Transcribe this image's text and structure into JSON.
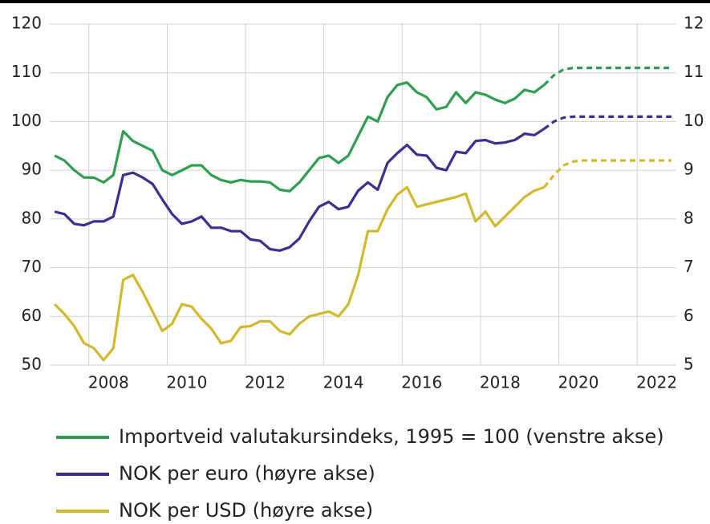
{
  "chart_data": {
    "type": "line",
    "x": [
      2007.125,
      2007.375,
      2007.625,
      2007.875,
      2008.125,
      2008.375,
      2008.625,
      2008.875,
      2009.125,
      2009.375,
      2009.625,
      2009.875,
      2010.125,
      2010.375,
      2010.625,
      2010.875,
      2011.125,
      2011.375,
      2011.625,
      2011.875,
      2012.125,
      2012.375,
      2012.625,
      2012.875,
      2013.125,
      2013.375,
      2013.625,
      2013.875,
      2014.125,
      2014.375,
      2014.625,
      2014.875,
      2015.125,
      2015.375,
      2015.625,
      2015.875,
      2016.125,
      2016.375,
      2016.625,
      2016.875,
      2017.125,
      2017.375,
      2017.625,
      2017.875,
      2018.125,
      2018.375,
      2018.625,
      2018.875,
      2019.125,
      2019.375,
      2019.625,
      2019.875,
      2020.125,
      2020.375,
      2020.625,
      2020.875,
      2021.125,
      2021.375,
      2021.625,
      2021.875,
      2022.125,
      2022.375,
      2022.625,
      2022.875
    ],
    "dashed_from": 2019.625,
    "series": [
      {
        "name": "Importveid valutakursindeks, 1995 = 100 (venstre akse)",
        "color": "#2e9e4f",
        "axis": "y",
        "values": [
          93,
          92,
          90,
          88.5,
          88.5,
          87.5,
          89,
          98,
          96,
          95,
          94,
          90,
          89,
          90,
          91,
          91,
          89,
          88,
          87.5,
          88,
          87.7,
          87.7,
          87.5,
          86,
          85.7,
          87.5,
          90,
          92.5,
          93,
          91.5,
          93,
          97,
          101,
          100,
          105,
          107.5,
          108,
          106,
          105,
          102.5,
          103,
          106,
          103.8,
          106,
          105.5,
          104.5,
          103.8,
          104.7,
          106.5,
          106,
          107.5,
          109.5,
          110.7,
          111,
          111,
          111,
          111,
          111,
          111,
          111,
          111,
          111,
          111,
          111
        ]
      },
      {
        "name": "NOK per euro (høyre akse)",
        "color": "#3f2e8f",
        "axis": "y2",
        "values": [
          8.15,
          8.1,
          7.9,
          7.87,
          7.95,
          7.95,
          8.05,
          8.9,
          8.95,
          8.85,
          8.72,
          8.4,
          8.1,
          7.9,
          7.95,
          8.05,
          7.82,
          7.82,
          7.75,
          7.75,
          7.58,
          7.55,
          7.38,
          7.35,
          7.42,
          7.6,
          7.95,
          8.25,
          8.35,
          8.2,
          8.25,
          8.58,
          8.75,
          8.6,
          9.15,
          9.35,
          9.52,
          9.32,
          9.3,
          9.05,
          9.0,
          9.38,
          9.35,
          9.6,
          9.62,
          9.55,
          9.57,
          9.62,
          9.75,
          9.72,
          9.85,
          10.0,
          10.08,
          10.1,
          10.1,
          10.1,
          10.1,
          10.1,
          10.1,
          10.1,
          10.1,
          10.1,
          10.1,
          10.1
        ]
      },
      {
        "name": "NOK per USD (høyre akse)",
        "color": "#d4b82c",
        "axis": "y2",
        "values": [
          6.25,
          6.05,
          5.8,
          5.45,
          5.35,
          5.1,
          5.35,
          6.75,
          6.85,
          6.5,
          6.1,
          5.7,
          5.85,
          6.25,
          6.2,
          5.95,
          5.75,
          5.45,
          5.5,
          5.78,
          5.8,
          5.9,
          5.9,
          5.7,
          5.63,
          5.85,
          6.0,
          6.05,
          6.1,
          6.0,
          6.25,
          6.85,
          7.75,
          7.75,
          8.2,
          8.5,
          8.65,
          8.25,
          8.3,
          8.35,
          8.4,
          8.45,
          8.52,
          7.95,
          8.15,
          7.85,
          8.05,
          8.25,
          8.45,
          8.58,
          8.65,
          8.9,
          9.1,
          9.18,
          9.2,
          9.2,
          9.2,
          9.2,
          9.2,
          9.2,
          9.2,
          9.2,
          9.2,
          9.2
        ]
      }
    ],
    "xlim": [
      2007,
      2023
    ],
    "xticks": [
      2008,
      2010,
      2012,
      2014,
      2016,
      2018,
      2020,
      2022
    ],
    "ylim": [
      50,
      120
    ],
    "yticks": [
      50,
      60,
      70,
      80,
      90,
      100,
      110,
      120
    ],
    "y2lim": [
      5,
      12
    ],
    "y2ticks": [
      5,
      6,
      7,
      8,
      9,
      10,
      11,
      12
    ],
    "grid": true
  }
}
